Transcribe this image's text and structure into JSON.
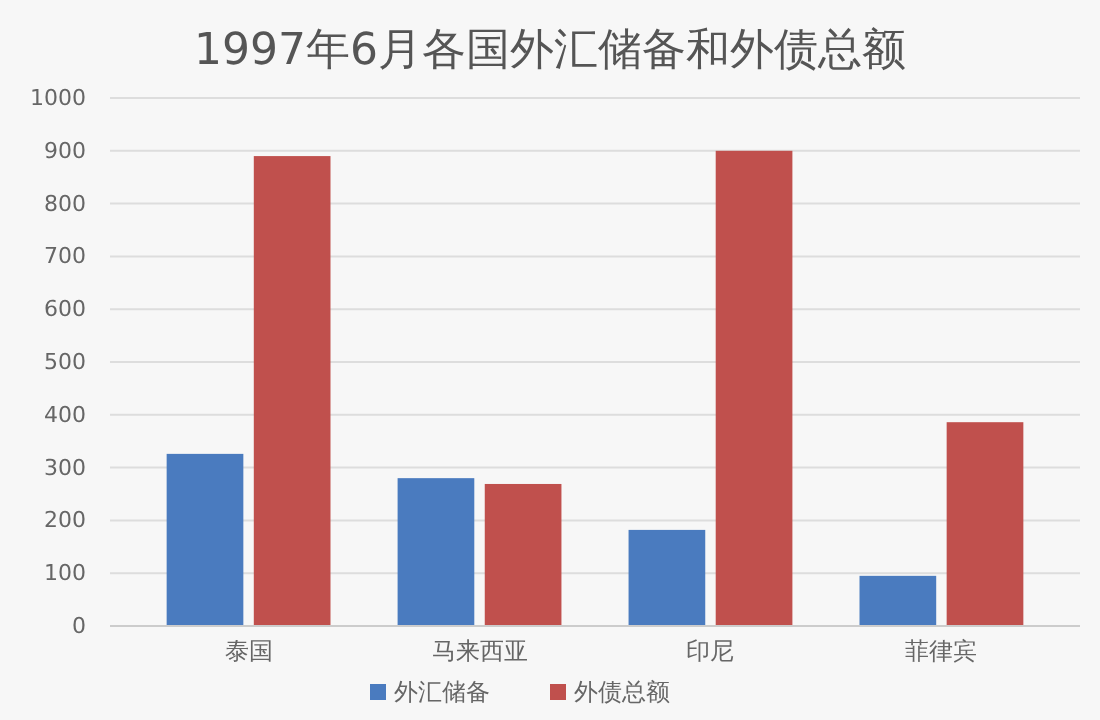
{
  "chart_data": {
    "type": "bar",
    "title": "1997年6月各国外汇储备和外债总额",
    "categories": [
      "泰国",
      "马来西亚",
      "印尼",
      "菲律宾"
    ],
    "series": [
      {
        "name": "外汇储备",
        "color": "#4a7bbf",
        "values": [
          326,
          280,
          182,
          95
        ]
      },
      {
        "name": "外债总额",
        "color": "#c0504d",
        "values": [
          890,
          269,
          900,
          386
        ]
      }
    ],
    "ylim": [
      0,
      1000
    ],
    "yticks": [
      0,
      100,
      200,
      300,
      400,
      500,
      600,
      700,
      800,
      900,
      1000
    ],
    "grid": "y",
    "legend": "bottom"
  }
}
